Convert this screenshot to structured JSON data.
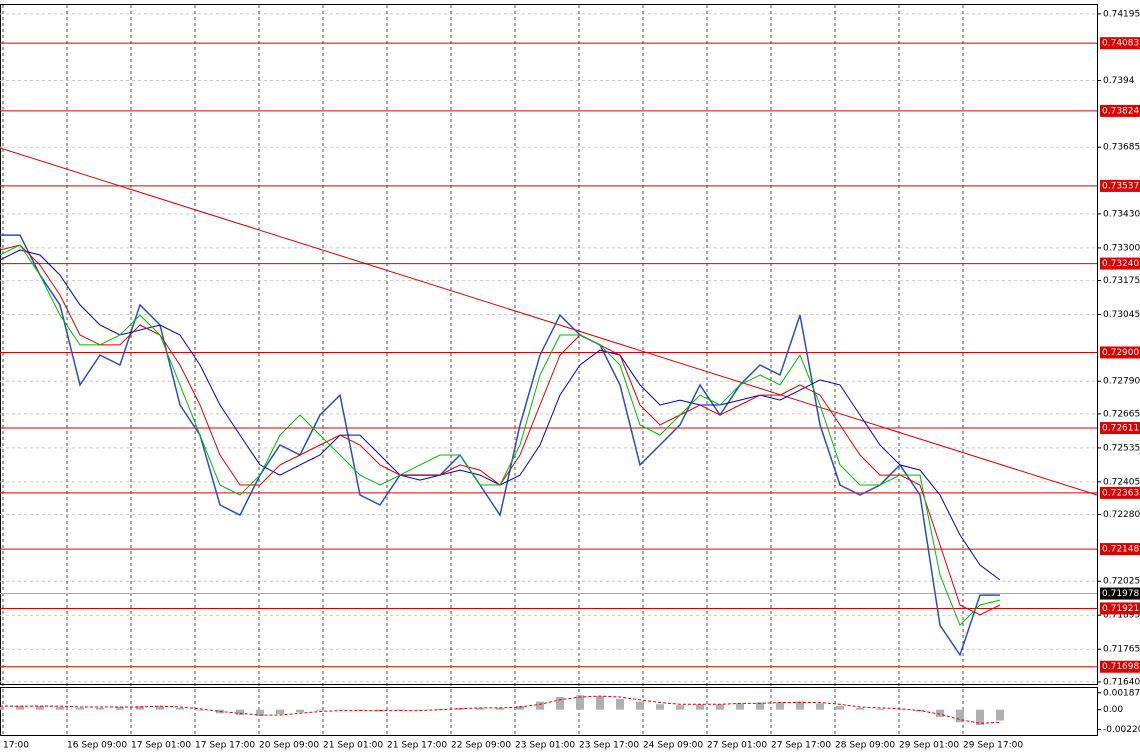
{
  "chart_data": [
    {
      "type": "line",
      "ylim": [
        0.71632,
        0.74229
      ],
      "yticks": [
        0.74195,
        0.7394,
        0.73685,
        {
          "value": 0.7343,
          "label": "0.73430"
        },
        {
          "value": 0.733,
          "label": "0.73300"
        },
        0.73175,
        0.73045,
        {
          "value": 0.7279,
          "label": "0.72790"
        },
        0.72665,
        0.72535,
        0.72405,
        {
          "value": 0.7228,
          "label": "0.72280"
        },
        0.72025,
        0.71895,
        0.71765,
        {
          "value": 0.7164,
          "label": "0.71640"
        }
      ],
      "grid": true,
      "time_labels": [
        "17:00",
        "16 Sep 09:00",
        "17 Sep 01:00",
        "17 Sep 17:00",
        "20 Sep 09:00",
        "21 Sep 01:00",
        "21 Sep 17:00",
        "22 Sep 09:00",
        "23 Sep 01:00",
        "23 Sep 17:00",
        "24 Sep 09:00",
        "27 Sep 01:00",
        "27 Sep 17:00",
        "28 Sep 09:00",
        "29 Sep 01:00",
        "29 Sep 17:00"
      ],
      "series": [
        {
          "color": "#2a4fc4",
          "values": [
            0.73349,
            0.73349,
            0.73196,
            0.73082,
            0.72776,
            0.7289,
            0.72852,
            0.73082,
            0.73005,
            0.72699,
            0.72584,
            0.72317,
            0.72278,
            0.72431,
            0.72546,
            0.72508,
            0.72661,
            0.72737,
            0.72355,
            0.72317,
            0.72431,
            0.72431,
            0.72431,
            0.72508,
            0.72393,
            0.72278,
            0.72623,
            0.7289,
            0.73043,
            0.72967,
            0.72929,
            0.72776,
            0.7247,
            0.72546,
            0.72623,
            0.72776,
            0.72661,
            0.72776,
            0.72852,
            0.72814,
            0.73043,
            0.72623,
            0.72393,
            0.72355,
            0.72393,
            0.7247,
            0.72355,
            0.71857,
            0.71743,
            0.71972,
            0.71972
          ]
        },
        {
          "color": "#0000cc",
          "values": [
            0.73254,
            0.73292,
            0.73273,
            0.73196,
            0.73082,
            0.73005,
            0.72967,
            0.72986,
            0.73005,
            0.72967,
            0.72852,
            0.72699,
            0.72584,
            0.7247,
            0.72431,
            0.7247,
            0.72508,
            0.72584,
            0.72584,
            0.72508,
            0.72431,
            0.72412,
            0.72431,
            0.7245,
            0.72431,
            0.72393,
            0.72431,
            0.72546,
            0.72737,
            0.72852,
            0.72909,
            0.7289,
            0.72776,
            0.72699,
            0.72718,
            0.72699,
            0.72699,
            0.72718,
            0.72737,
            0.72718,
            0.72756,
            0.72795,
            0.72776,
            0.72661,
            0.72546,
            0.7247,
            0.7245,
            0.72355,
            0.72202,
            0.72087,
            0.7203
          ]
        },
        {
          "color": "#dd0000",
          "values": [
            0.73292,
            0.73311,
            0.73234,
            0.7312,
            0.72967,
            0.72929,
            0.72929,
            0.73005,
            0.72967,
            0.72852,
            0.72699,
            0.72508,
            0.72393,
            0.72393,
            0.7247,
            0.72508,
            0.72546,
            0.72584,
            0.72546,
            0.7247,
            0.72431,
            0.72431,
            0.72431,
            0.7247,
            0.7245,
            0.72393,
            0.72508,
            0.72699,
            0.7289,
            0.72967,
            0.72929,
            0.7289,
            0.72699,
            0.72623,
            0.72661,
            0.72699,
            0.72661,
            0.72699,
            0.72737,
            0.72737,
            0.72776,
            0.72737,
            0.72623,
            0.72508,
            0.72431,
            0.72431,
            0.72393,
            0.72164,
            0.71934,
            0.71896,
            0.71934
          ]
        },
        {
          "color": "#00bb00",
          "values": [
            0.73273,
            0.73311,
            0.73196,
            0.73043,
            0.72929,
            0.72929,
            0.72967,
            0.73043,
            0.72967,
            0.72776,
            0.72584,
            0.72393,
            0.72355,
            0.72431,
            0.72584,
            0.72661,
            0.72584,
            0.72508,
            0.72431,
            0.72393,
            0.72431,
            0.7247,
            0.72508,
            0.72508,
            0.72393,
            0.72393,
            0.72546,
            0.72814,
            0.72967,
            0.72967,
            0.72929,
            0.72852,
            0.72623,
            0.72584,
            0.72661,
            0.72737,
            0.72699,
            0.72776,
            0.72814,
            0.72776,
            0.7289,
            0.72699,
            0.7247,
            0.72393,
            0.72393,
            0.72431,
            0.72431,
            0.72049,
            0.71857,
            0.71934,
            0.71953
          ]
        }
      ],
      "trendline": {
        "color": "#dd0000",
        "values": [
          0.73682,
          0.72355
        ]
      },
      "levels": {
        "color": "#dd0000",
        "values": [
          0.74083,
          0.73824,
          0.73537,
          {
            "value": 0.7324,
            "label": "0.73240"
          },
          {
            "value": 0.729,
            "label": "0.72900"
          },
          0.72611,
          0.72363,
          0.72148,
          0.71921,
          0.71698
        ]
      },
      "current_price": 0.71978
    },
    {
      "type": "histogram",
      "ylim": [
        -0.0028,
        0.0024
      ],
      "yticks": [
        0.001873,
        {
          "value": 0,
          "label": "0.00"
        },
        {
          "value": -0.0022,
          "label": "-0.00220"
        }
      ],
      "values": [
        0.0003,
        0.0004,
        0.0004,
        0.0003,
        0.0002,
        0.0002,
        0.0003,
        0.0004,
        0.0004,
        0.0002,
        -0.0001,
        -0.0004,
        -0.0006,
        -0.0007,
        -0.0005,
        -0.0003,
        -0.0001,
        0,
        -0.0001,
        -0.0002,
        -0.0001,
        0,
        0.0001,
        0.0002,
        0.0002,
        0.0002,
        0.0004,
        0.0009,
        0.0014,
        0.0016,
        0.0015,
        0.0012,
        0.0009,
        0.0006,
        0.0005,
        0.0006,
        0.0006,
        0.0007,
        0.0008,
        0.0008,
        0.0009,
        0.0007,
        0.0004,
        0.0002,
        0.0001,
        0,
        -0.0002,
        -0.0008,
        -0.0014,
        -0.0017,
        -0.0012
      ],
      "color": "#b0b0b0",
      "signal": {
        "color": "#dd0000",
        "values": [
          0.0004,
          0.0004,
          0.0004,
          0.0004,
          0.0003,
          0.0003,
          0.0003,
          0.0003,
          0.0004,
          0.0003,
          0.0001,
          -0.0002,
          -0.0004,
          -0.0006,
          -0.0006,
          -0.0004,
          -0.0002,
          -0.0001,
          -0.0001,
          -0.0001,
          -0.0001,
          -0.0001,
          0,
          0.0001,
          0.0002,
          0.0002,
          0.0003,
          0.0006,
          0.0011,
          0.0014,
          0.0015,
          0.0014,
          0.0011,
          0.0008,
          0.0006,
          0.0006,
          0.0006,
          0.0007,
          0.0007,
          0.0008,
          0.0008,
          0.0008,
          0.0006,
          0.0003,
          0.0002,
          0.0001,
          -0.0001,
          -0.0005,
          -0.0011,
          -0.0015,
          -0.0014
        ]
      }
    }
  ]
}
